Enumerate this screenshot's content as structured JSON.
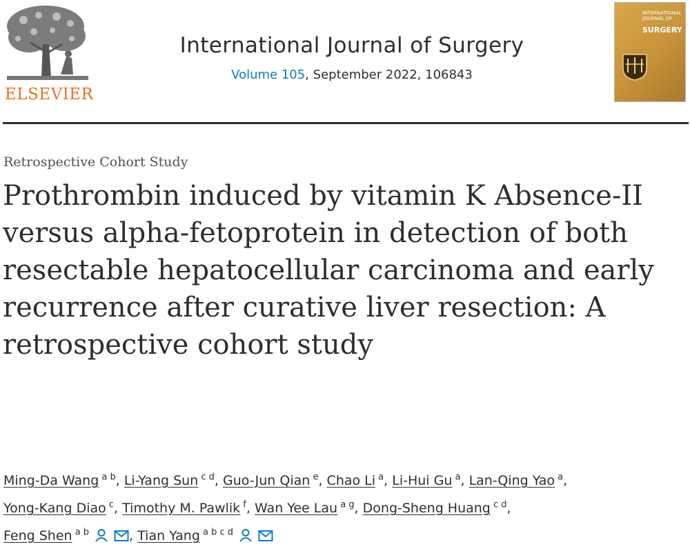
{
  "header": {
    "publisher": "ELSEVIER",
    "journal_title": "International Journal of Surgery",
    "volume_link": "Volume 105",
    "issue_info": ", September 2022, 106843",
    "cover_text_small": "INTERNATIONAL JOURNAL OF",
    "cover_text_large": "SURGERY"
  },
  "article": {
    "type": "Retrospective Cohort Study",
    "title": "Prothrombin induced by vitamin K Absence-II versus alpha-fetoprotein in detection of both resectable hepatocellular carcinoma and early recurrence after curative liver resection: A retrospective cohort study"
  },
  "authors": [
    {
      "name": "Ming-Da Wang",
      "aff": "a b",
      "sep": ", "
    },
    {
      "name": "Li-Yang Sun",
      "aff": "c d",
      "sep": ", "
    },
    {
      "name": "Guo-Jun Qian",
      "aff": "e",
      "sep": ", "
    },
    {
      "name": "Chao Li",
      "aff": "a",
      "sep": ", "
    },
    {
      "name": "Li-Hui Gu",
      "aff": "a",
      "sep": ", "
    },
    {
      "name": "Lan-Qing Yao",
      "aff": "a",
      "sep": ","
    },
    {
      "name": "Yong-Kang Diao",
      "aff": "c",
      "sep": ", "
    },
    {
      "name": "Timothy M. Pawlik",
      "aff": "f",
      "sep": ", "
    },
    {
      "name": "Wan Yee Lau",
      "aff": "a g",
      "sep": ", "
    },
    {
      "name": "Dong-Sheng Huang",
      "aff": "c d",
      "sep": ","
    },
    {
      "name": "Feng Shen",
      "aff": "a b",
      "sep": ", "
    },
    {
      "name": "Tian Yang",
      "aff": "a b c d",
      "sep": ""
    }
  ]
}
